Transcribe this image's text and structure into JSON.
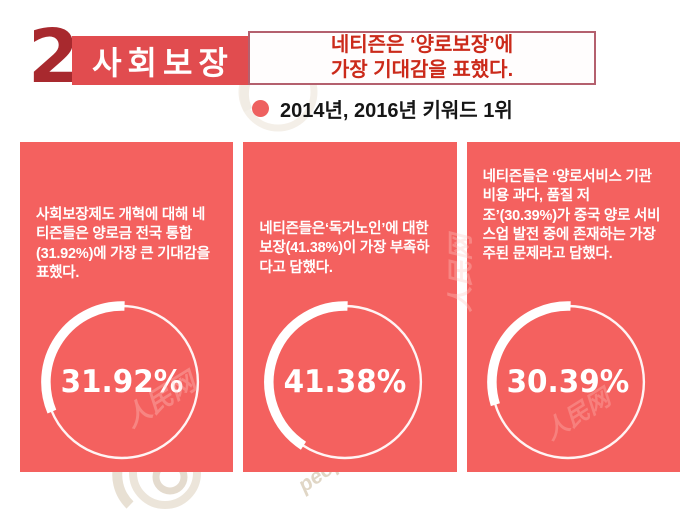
{
  "header": {
    "section_number": "2",
    "section_title": "사회보장",
    "headline": {
      "line1": "네티즌은 ‘양로보장’에",
      "line2": "가장 기대감을 표했다."
    },
    "keyword_note": "2014년, 2016년 키워드 1위"
  },
  "cards": [
    {
      "description": "사회보장제도 개혁에 대해 네티즌들은 양로금 전국 통합(31.92%)에 가장 큰 기대감을 표했다.",
      "percent_label": "31.92%"
    },
    {
      "description": "네티즌들은‘독거노인’에 대한 보장(41.38%)이 가장 부족하다고 답했다.",
      "percent_label": "41.38%"
    },
    {
      "description": "네티즌들은 ‘양로서비스 기관 비용 과다, 품질 저조’(30.39%)가 중국 양로 서비스업 발전 중에 존재하는 가장 주된 문제라고 답했다.",
      "percent_label": "30.39%"
    }
  ],
  "chart_data": [
    {
      "type": "pie",
      "subtype": "donut-gauge",
      "title": "양로금 전국 통합 기대감",
      "value": 31.92,
      "label": "31.92%",
      "values": [
        31.92,
        68.08
      ],
      "legend": "none",
      "ring_color": "#ffffff",
      "background": "#f4615f",
      "start_angle_deg": 88,
      "direction": "counterclockwise"
    },
    {
      "type": "pie",
      "subtype": "donut-gauge",
      "title": "독거노인 보장 부족 응답",
      "value": 41.38,
      "label": "41.38%",
      "values": [
        41.38,
        58.62
      ],
      "legend": "none",
      "ring_color": "#ffffff",
      "background": "#f4615f",
      "start_angle_deg": 88,
      "direction": "counterclockwise"
    },
    {
      "type": "pie",
      "subtype": "donut-gauge",
      "title": "양로서비스 기관 비용 과다·품질 저조 응답",
      "value": 30.39,
      "label": "30.39%",
      "values": [
        30.39,
        69.61
      ],
      "legend": "none",
      "ring_color": "#ffffff",
      "background": "#f4615f",
      "start_angle_deg": 88,
      "direction": "counterclockwise"
    }
  ],
  "watermarks": {
    "logo_text": "people.cn",
    "brand_text": "人民网"
  },
  "colors": {
    "card_background": "#f4615f",
    "section_box_background": "#e14c4f",
    "section_number": "#a8292e",
    "headline_text": "#cb2a1a",
    "headline_border": "#b4606e",
    "bullet": "#ee6160",
    "text_on_card": "#ffffff"
  }
}
